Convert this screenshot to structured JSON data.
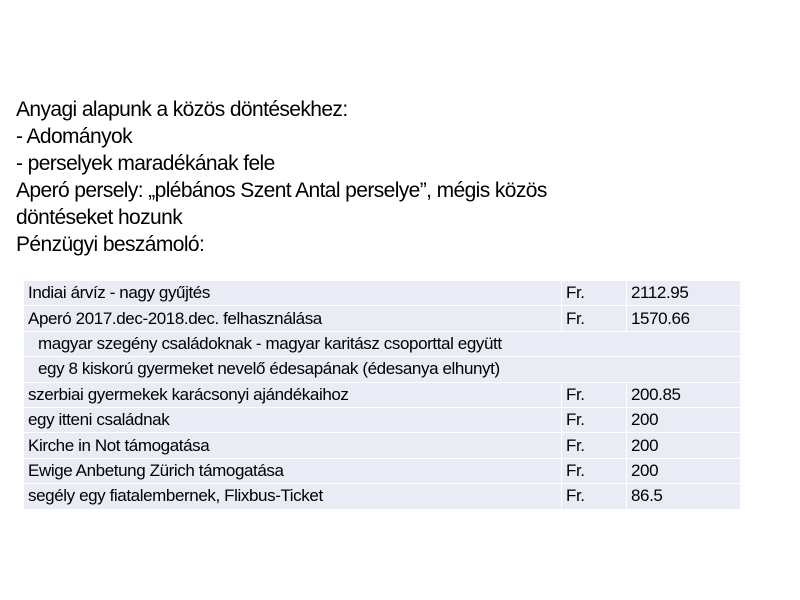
{
  "intro": {
    "lines": [
      "Anyagi alapunk a közös döntésekhez:",
      "-  Adományok",
      "-  perselyek maradékának fele",
      "Aperó persely: „plébános Szent Antal perselye”, mégis közös",
      "döntéseket hozunk",
      "Pénzügyi beszámoló:"
    ]
  },
  "table": {
    "rows": [
      {
        "item": "Indiai árvíz - nagy gyűjtés",
        "currency": "Fr.",
        "amount": "2112.95"
      },
      {
        "item": "Aperó 2017.dec-2018.dec. felhasználása",
        "currency": "Fr.",
        "amount": "1570.66"
      },
      {
        "item": "magyar szegény családoknak - magyar karitász csoporttal együtt"
      },
      {
        "item": "egy 8 kiskorú gyermeket nevelő édesapának (édesanya elhunyt)"
      },
      {
        "item": "szerbiai gyermekek karácsonyi ajándékaihoz",
        "currency": "Fr.",
        "amount": "200.85"
      },
      {
        "item": "egy itteni családnak",
        "currency": "Fr.",
        "amount": "200"
      },
      {
        "item": "Kirche in Not támogatása",
        "currency": "Fr.",
        "amount": "200"
      },
      {
        "item": "Ewige Anbetung Zürich támogatása",
        "currency": "Fr.",
        "amount": "200"
      },
      {
        "item": "segély egy fiatalembernek, Flixbus-Ticket",
        "currency": "Fr.",
        "amount": "86.5"
      }
    ],
    "cell_color": "#e9ebf5"
  }
}
